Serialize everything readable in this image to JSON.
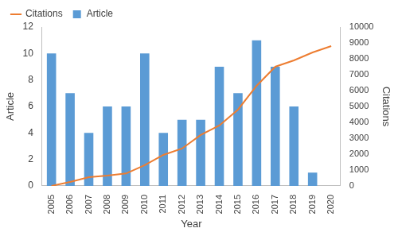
{
  "chart_data": {
    "type": "bar",
    "categories": [
      "2005",
      "2006",
      "2007",
      "2008",
      "2009",
      "2010",
      "2011",
      "2012",
      "2013",
      "2014",
      "2015",
      "2016",
      "2017",
      "2018",
      "2019",
      "2020"
    ],
    "series": [
      {
        "name": "Article",
        "type": "bar",
        "color": "#5b9bd5",
        "values": [
          10,
          7,
          4,
          6,
          6,
          10,
          4,
          5,
          5,
          9,
          7,
          11,
          9,
          6,
          1,
          0
        ]
      },
      {
        "name": "Citations",
        "type": "line",
        "color": "#ed7d31",
        "axis": "y2",
        "marker": "none",
        "values": [
          0,
          250,
          550,
          650,
          780,
          1300,
          1950,
          2350,
          3200,
          3800,
          4800,
          6300,
          7500,
          7900,
          8400,
          8800
        ]
      }
    ],
    "x_label": "Year",
    "y_label": "Article",
    "y2_label": "Citations",
    "ylim": [
      0,
      12
    ],
    "yticks": [
      0,
      2,
      4,
      6,
      8,
      10,
      12
    ],
    "y2lim": [
      0,
      10000
    ],
    "y2ticks": [
      0,
      1000,
      2000,
      3000,
      4000,
      5000,
      6000,
      7000,
      8000,
      9000,
      10000
    ],
    "grid": false,
    "legend": "top"
  }
}
